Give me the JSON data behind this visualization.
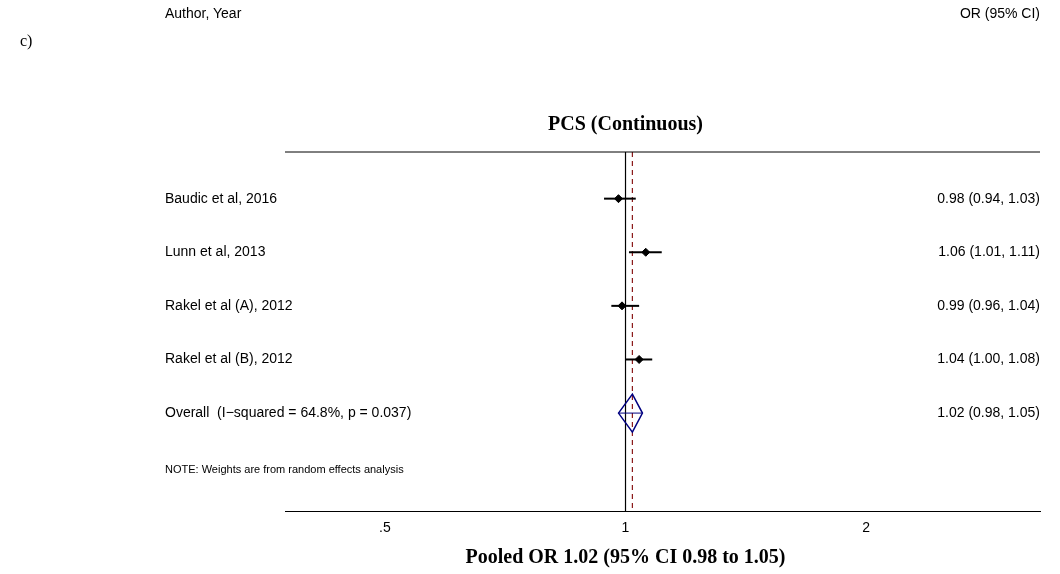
{
  "chart_data": {
    "type": "scatter",
    "orientation": "horizontal",
    "title": "PCS (Continuous)",
    "xlabel": "Pooled OR 1.02 (95% CI 0.98 to 1.05)",
    "categories": [
      "Baudic et al, 2016",
      "Lunn et al, 2013",
      "Rakel et al (A), 2012",
      "Rakel et al (B), 2012",
      "Overall  (I−squared = 64.8%, p = 0.037)"
    ],
    "series": [
      {
        "color": "#000000",
        "values": [
          0.98,
          1.06,
          0.99,
          1.04,
          null
        ],
        "errors": [
          [
            0.94,
            1.03
          ],
          [
            1.01,
            1.11
          ],
          [
            0.96,
            1.04
          ],
          [
            1.0,
            1.08
          ],
          null
        ]
      },
      {
        "color": "#000080",
        "marker": "diamond",
        "values": [
          null,
          null,
          null,
          null,
          1.02
        ],
        "errors": [
          null,
          null,
          null,
          null,
          [
            0.98,
            1.05
          ]
        ]
      }
    ],
    "marker": "diamond",
    "log": "x",
    "xlim": [
      0.375,
      3.3
    ],
    "xticks": [
      {
        "value": 0.5,
        "label": ".5"
      },
      1,
      2
    ],
    "grid": false,
    "legend": false,
    "ref_lines": [
      {
        "axis": "x",
        "value": 1,
        "color": "#000000",
        "line_style": "solid"
      },
      {
        "axis": "x",
        "value": 1.02,
        "color": "#8b1a1a",
        "line_style": "dashed"
      }
    ],
    "annotations": [
      "c)",
      "Author, Year",
      "OR (95% CI)",
      "NOTE: Weights are from random effects analysis",
      "0.98 (0.94, 1.03)",
      "1.06 (1.01, 1.11)",
      "0.99 (0.96, 1.04)",
      "1.04 (1.00, 1.08)",
      "1.02 (0.98, 1.05)"
    ]
  }
}
